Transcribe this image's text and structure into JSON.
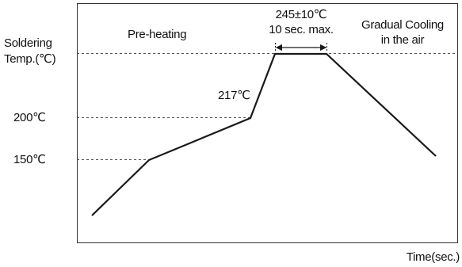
{
  "labels": {
    "y_axis_line1": "Soldering",
    "y_axis_line2": "Temp.(℃)",
    "tick_200": "200℃",
    "tick_150": "150℃",
    "peak_217": "217℃",
    "zone_preheating": "Pre-heating",
    "peak_temp": "245±10℃",
    "peak_time": "10 sec. max.",
    "cooling_line1": "Gradual Cooling",
    "cooling_line2": "in the air",
    "x_axis": "Time(sec.)"
  },
  "profile": {
    "peak_nominal_c": 245,
    "peak_tolerance_c": 10,
    "peak_hold_max_s": 10,
    "reflow_c": 217,
    "preheat_end_c": 200,
    "preheat_start_c": 150
  },
  "colors": {
    "line": "#1a1a1a",
    "frame": "#333333",
    "guide": "#555555",
    "text": "#111111"
  }
}
